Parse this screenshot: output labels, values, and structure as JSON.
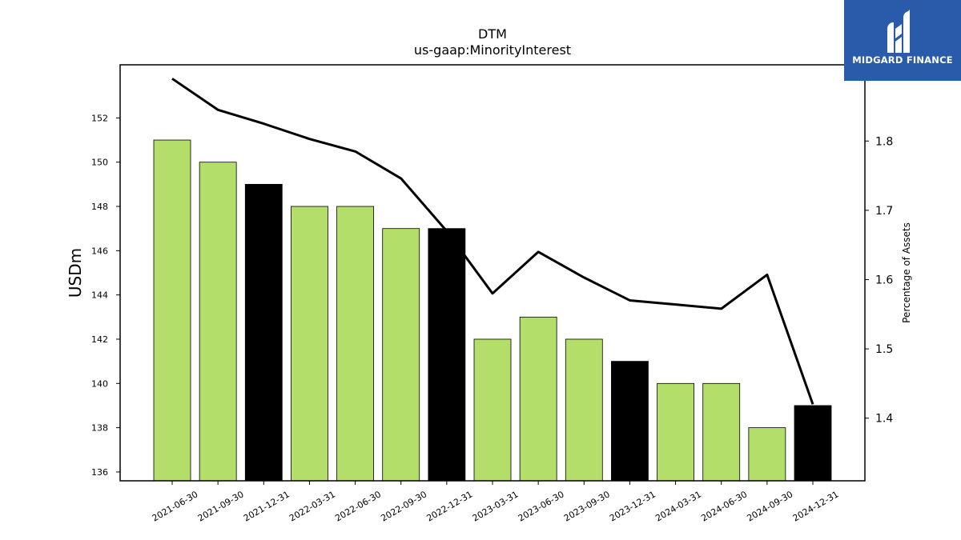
{
  "chart_data": {
    "type": "bar",
    "title": "DTM",
    "subtitle": "us-gaap:MinorityInterest",
    "ylabel": "USDm",
    "y2label": "Percentage of Assets",
    "categories": [
      "2021-06-30",
      "2021-09-30",
      "2021-12-31",
      "2022-03-31",
      "2022-06-30",
      "2022-09-30",
      "2022-12-31",
      "2023-03-31",
      "2023-06-30",
      "2023-09-30",
      "2023-12-31",
      "2024-03-31",
      "2024-06-30",
      "2024-09-30",
      "2024-12-31"
    ],
    "values": [
      151,
      150,
      149,
      148,
      148,
      147,
      147,
      142,
      143,
      142,
      141,
      140,
      140,
      138,
      139
    ],
    "bar_colors": [
      "#b3de69",
      "#b3de69",
      "#000000",
      "#b3de69",
      "#b3de69",
      "#b3de69",
      "#000000",
      "#b3de69",
      "#b3de69",
      "#b3de69",
      "#000000",
      "#b3de69",
      "#b3de69",
      "#b3de69",
      "#000000"
    ],
    "line_series": {
      "name": "Percentage of Assets",
      "values": [
        1.89,
        1.845,
        1.825,
        1.803,
        1.785,
        1.746,
        1.67,
        1.58,
        1.64,
        1.603,
        1.57,
        1.564,
        1.558,
        1.607,
        1.42
      ]
    },
    "ylim": [
      135.6,
      154.4
    ],
    "y2lim": [
      1.3096,
      1.91
    ],
    "yticks": [
      136,
      138,
      140,
      142,
      144,
      146,
      148,
      150,
      152
    ],
    "y2ticks": [
      1.4,
      1.5,
      1.6,
      1.7,
      1.8
    ],
    "grid": false
  },
  "logo": {
    "text": "MIDGARD FINANCE",
    "background": "#2a5bab"
  }
}
